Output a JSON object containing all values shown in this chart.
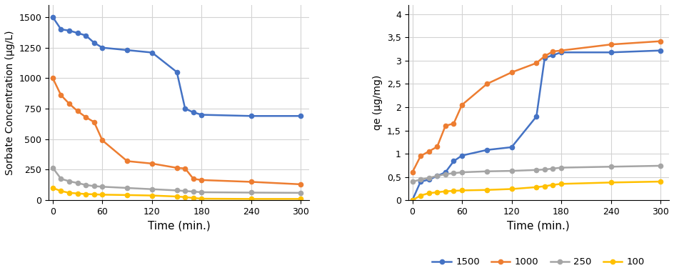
{
  "time": [
    0,
    10,
    20,
    30,
    40,
    50,
    60,
    90,
    120,
    150,
    160,
    170,
    180,
    240,
    300
  ],
  "conc_1500": [
    1500,
    1400,
    1390,
    1370,
    1350,
    1290,
    1250,
    1230,
    1210,
    1050,
    750,
    720,
    700,
    690,
    690
  ],
  "conc_1000": [
    1000,
    860,
    790,
    730,
    680,
    640,
    490,
    320,
    300,
    265,
    260,
    175,
    165,
    150,
    130
  ],
  "conc_250": [
    265,
    175,
    155,
    140,
    125,
    115,
    110,
    100,
    90,
    80,
    75,
    70,
    65,
    62,
    60
  ],
  "conc_100": [
    100,
    75,
    60,
    55,
    50,
    48,
    45,
    42,
    38,
    30,
    25,
    18,
    12,
    10,
    10
  ],
  "qe_1500": [
    0.0,
    0.4,
    0.44,
    0.52,
    0.6,
    0.84,
    0.96,
    1.08,
    1.14,
    1.8,
    3.06,
    3.12,
    3.18,
    3.18,
    3.22
  ],
  "qe_1000": [
    0.6,
    0.95,
    1.05,
    1.15,
    1.6,
    1.65,
    2.05,
    2.5,
    2.75,
    2.95,
    3.1,
    3.2,
    3.22,
    3.35,
    3.42
  ],
  "qe_250": [
    0.4,
    0.44,
    0.48,
    0.52,
    0.56,
    0.58,
    0.6,
    0.62,
    0.63,
    0.65,
    0.66,
    0.68,
    0.7,
    0.72,
    0.74
  ],
  "qe_100": [
    0.0,
    0.1,
    0.15,
    0.17,
    0.19,
    0.2,
    0.21,
    0.22,
    0.24,
    0.28,
    0.3,
    0.33,
    0.35,
    0.38,
    0.4
  ],
  "colors": {
    "1500": "#4472C4",
    "1000": "#ED7D31",
    "250": "#A5A5A5",
    "100": "#FFC000"
  },
  "ylabel_left": "Sorbate Concentration (µg/L)",
  "ylabel_right": "qe (µg/mg)",
  "xlabel": "Time (min.)",
  "xticks": [
    0,
    60,
    120,
    180,
    240,
    300
  ],
  "yticks_left": [
    0,
    250,
    500,
    750,
    1000,
    1250,
    1500
  ],
  "yticks_right": [
    0,
    0.5,
    1.0,
    1.5,
    2.0,
    2.5,
    3.0,
    3.5,
    4.0
  ],
  "ylim_left": [
    0,
    1600
  ],
  "ylim_right": [
    0,
    4.2
  ],
  "legend_labels": [
    "1500",
    "1000",
    "250",
    "100"
  ]
}
